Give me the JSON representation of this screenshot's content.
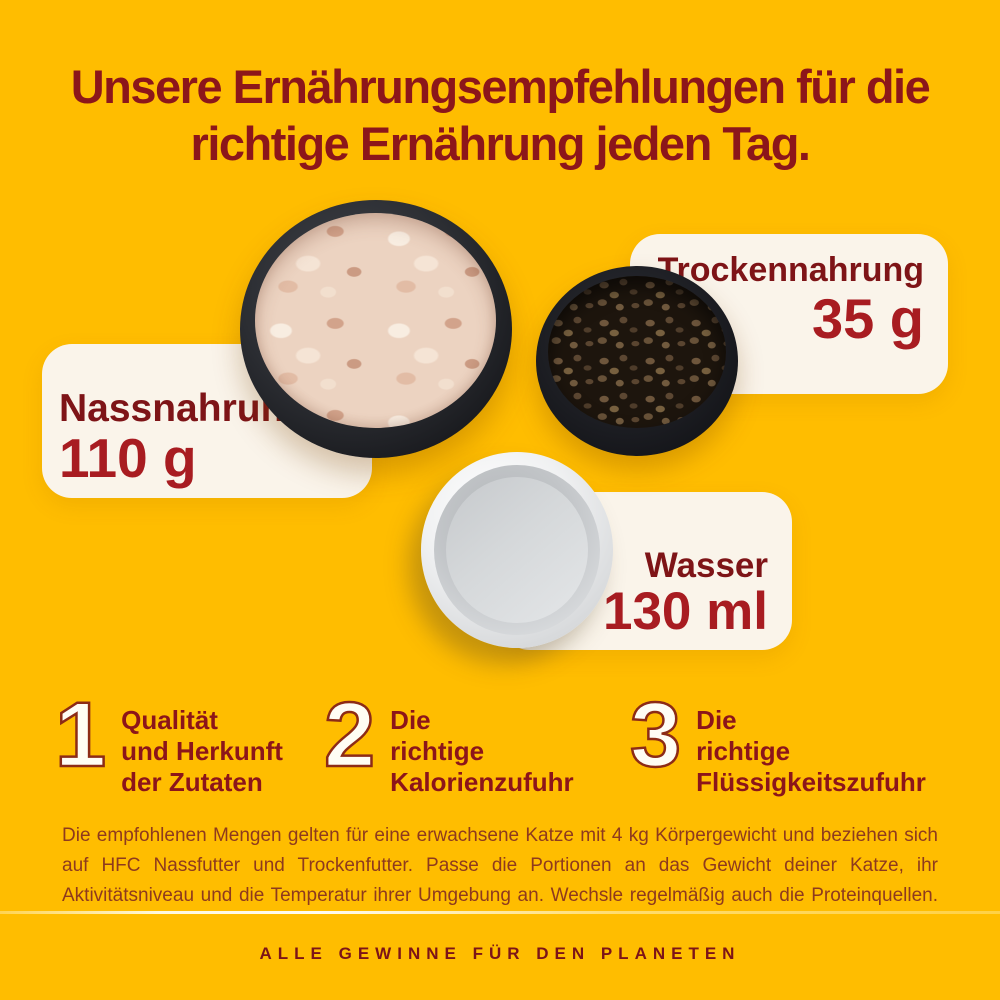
{
  "colors": {
    "background": "#FFBD00",
    "heading": "#8C161A",
    "card_background": "#FAF4EA",
    "label_text": "#7E1417",
    "amount_text": "#A81C21",
    "body_text": "#8E3A1E",
    "footer_text": "#7C1418",
    "number_fill": "#FFFDF4",
    "number_outline": "#8D2B16"
  },
  "header": {
    "line1": "Unsere Ernährungsempfehlungen für die",
    "line2": "richtige Ernährung jeden Tag."
  },
  "portions": [
    {
      "label": "Nassnahrung",
      "amount": "110 g",
      "photo": "wet-food-bowl"
    },
    {
      "label": "Trockennahrung",
      "amount": "35 g",
      "photo": "dry-food-bowl"
    },
    {
      "label": "Wasser",
      "amount": "130 ml",
      "photo": "water-bowl"
    }
  ],
  "principles": [
    {
      "number": "1",
      "lines": [
        "Qualität",
        "und Herkunft",
        "der Zutaten"
      ]
    },
    {
      "number": "2",
      "lines": [
        "Die",
        "richtige",
        "Kalorienzufuhr"
      ]
    },
    {
      "number": "3",
      "lines": [
        "Die",
        "richtige",
        "Flüssigkeitszufuhr"
      ]
    }
  ],
  "disclaimer": {
    "lines": [
      "Die empfohlenen Mengen gelten für eine erwachsene Katze mit 4 kg Körpergewicht und beziehen sich",
      "auf HFC Nassfutter und Trockenfutter. Passe die Portionen an das Gewicht deiner Katze, ihr",
      "Aktivitätsniveau und die Temperatur ihrer Umgebung an. Wechsle regelmäßig auch die Proteinquellen."
    ]
  },
  "footer": {
    "tagline": "ALLE GEWINNE FÜR DEN PLANETEN"
  }
}
